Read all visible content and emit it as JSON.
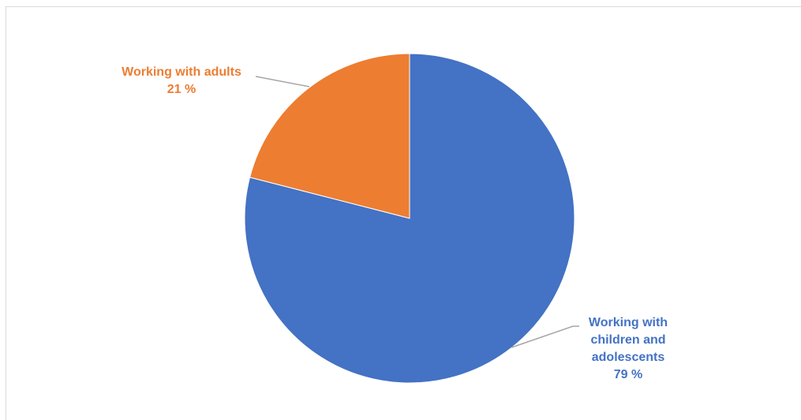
{
  "chart_data": {
    "type": "pie",
    "slices": [
      {
        "label": "Working with children and adolescents",
        "value": 79,
        "value_label": "79 %",
        "color": "#4472c4"
      },
      {
        "label": "Working with adults",
        "value": 21,
        "value_label": "21 %",
        "color": "#ed7d31"
      }
    ],
    "label_lines": {
      "children": [
        "Working with",
        "children and",
        "adolescents"
      ],
      "adults": [
        "Working with adults"
      ]
    },
    "start_angle": "12 o'clock",
    "direction": "clockwise",
    "legend": "none",
    "leader_line_color": "#a6a6a6"
  }
}
